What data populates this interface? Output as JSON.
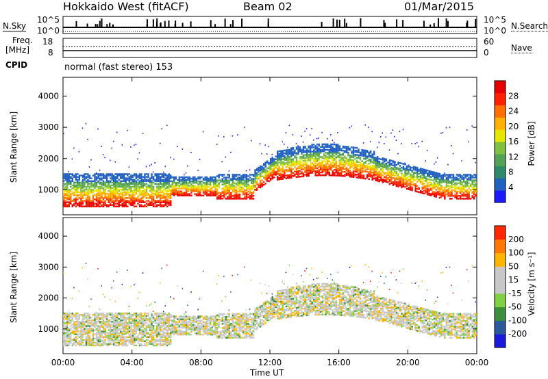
{
  "header": {
    "station": "Hokkaido West (fitACF)",
    "beam": "Beam 02",
    "date": "01/Mar/2015"
  },
  "noise_panel": {
    "left_label": "N.Sky",
    "right_label": "N.Search",
    "tick_top": "10^5",
    "tick_bottom": "10^0",
    "right_tick_top": "10^5",
    "right_tick_bottom": "10^0"
  },
  "freq_panel": {
    "left_label_1": "Freq.",
    "left_label_2": "[MHz]",
    "tick_top": "18",
    "tick_bottom": "8",
    "right_label": "Nave",
    "right_tick_top": "60",
    "right_tick_bottom": "0"
  },
  "cpid_panel": {
    "left_label": "CPID",
    "text": "normal (fast stereo) 153"
  },
  "chart_data": [
    {
      "type": "heatmap",
      "name": "power",
      "ylabel": "Slant Range [km]",
      "y_ticks": [
        "1000",
        "2000",
        "3000",
        "4000"
      ],
      "ylim": [
        200,
        4600
      ],
      "xlim_hours": [
        0,
        24
      ],
      "colorbar": {
        "label": "Power [dB]",
        "tick_labels": [
          "4",
          "8",
          "12",
          "16",
          "20",
          "24",
          "28"
        ],
        "range": [
          0,
          30
        ],
        "colors": [
          "#1a1aff",
          "#2060c0",
          "#2e8a6a",
          "#55a255",
          "#80c040",
          "#e6e600",
          "#ffb000",
          "#ff7000",
          "#ff2000",
          "#e60000"
        ]
      }
    },
    {
      "type": "heatmap",
      "name": "velocity",
      "ylabel": "Slant Range [km]",
      "y_ticks": [
        "1000",
        "2000",
        "3000",
        "4000"
      ],
      "ylim": [
        200,
        4600
      ],
      "xlim_hours": [
        0,
        24
      ],
      "x_tick_labels": [
        "00:00",
        "04:00",
        "08:00",
        "12:00",
        "16:00",
        "20:00",
        "00:00"
      ],
      "xlabel": "Time UT",
      "colorbar": {
        "label": "Velocity [m s⁻¹]",
        "tick_labels": [
          "200",
          "100",
          "50",
          "15",
          "-15",
          "-50",
          "-100",
          "-200"
        ],
        "colors": [
          "#1a1adc",
          "#2a5a9a",
          "#3c8f3c",
          "#7fd13f",
          "#c8c8c8",
          "#c8c8c8",
          "#ffb400",
          "#ff7800",
          "#ff2800"
        ]
      }
    }
  ]
}
